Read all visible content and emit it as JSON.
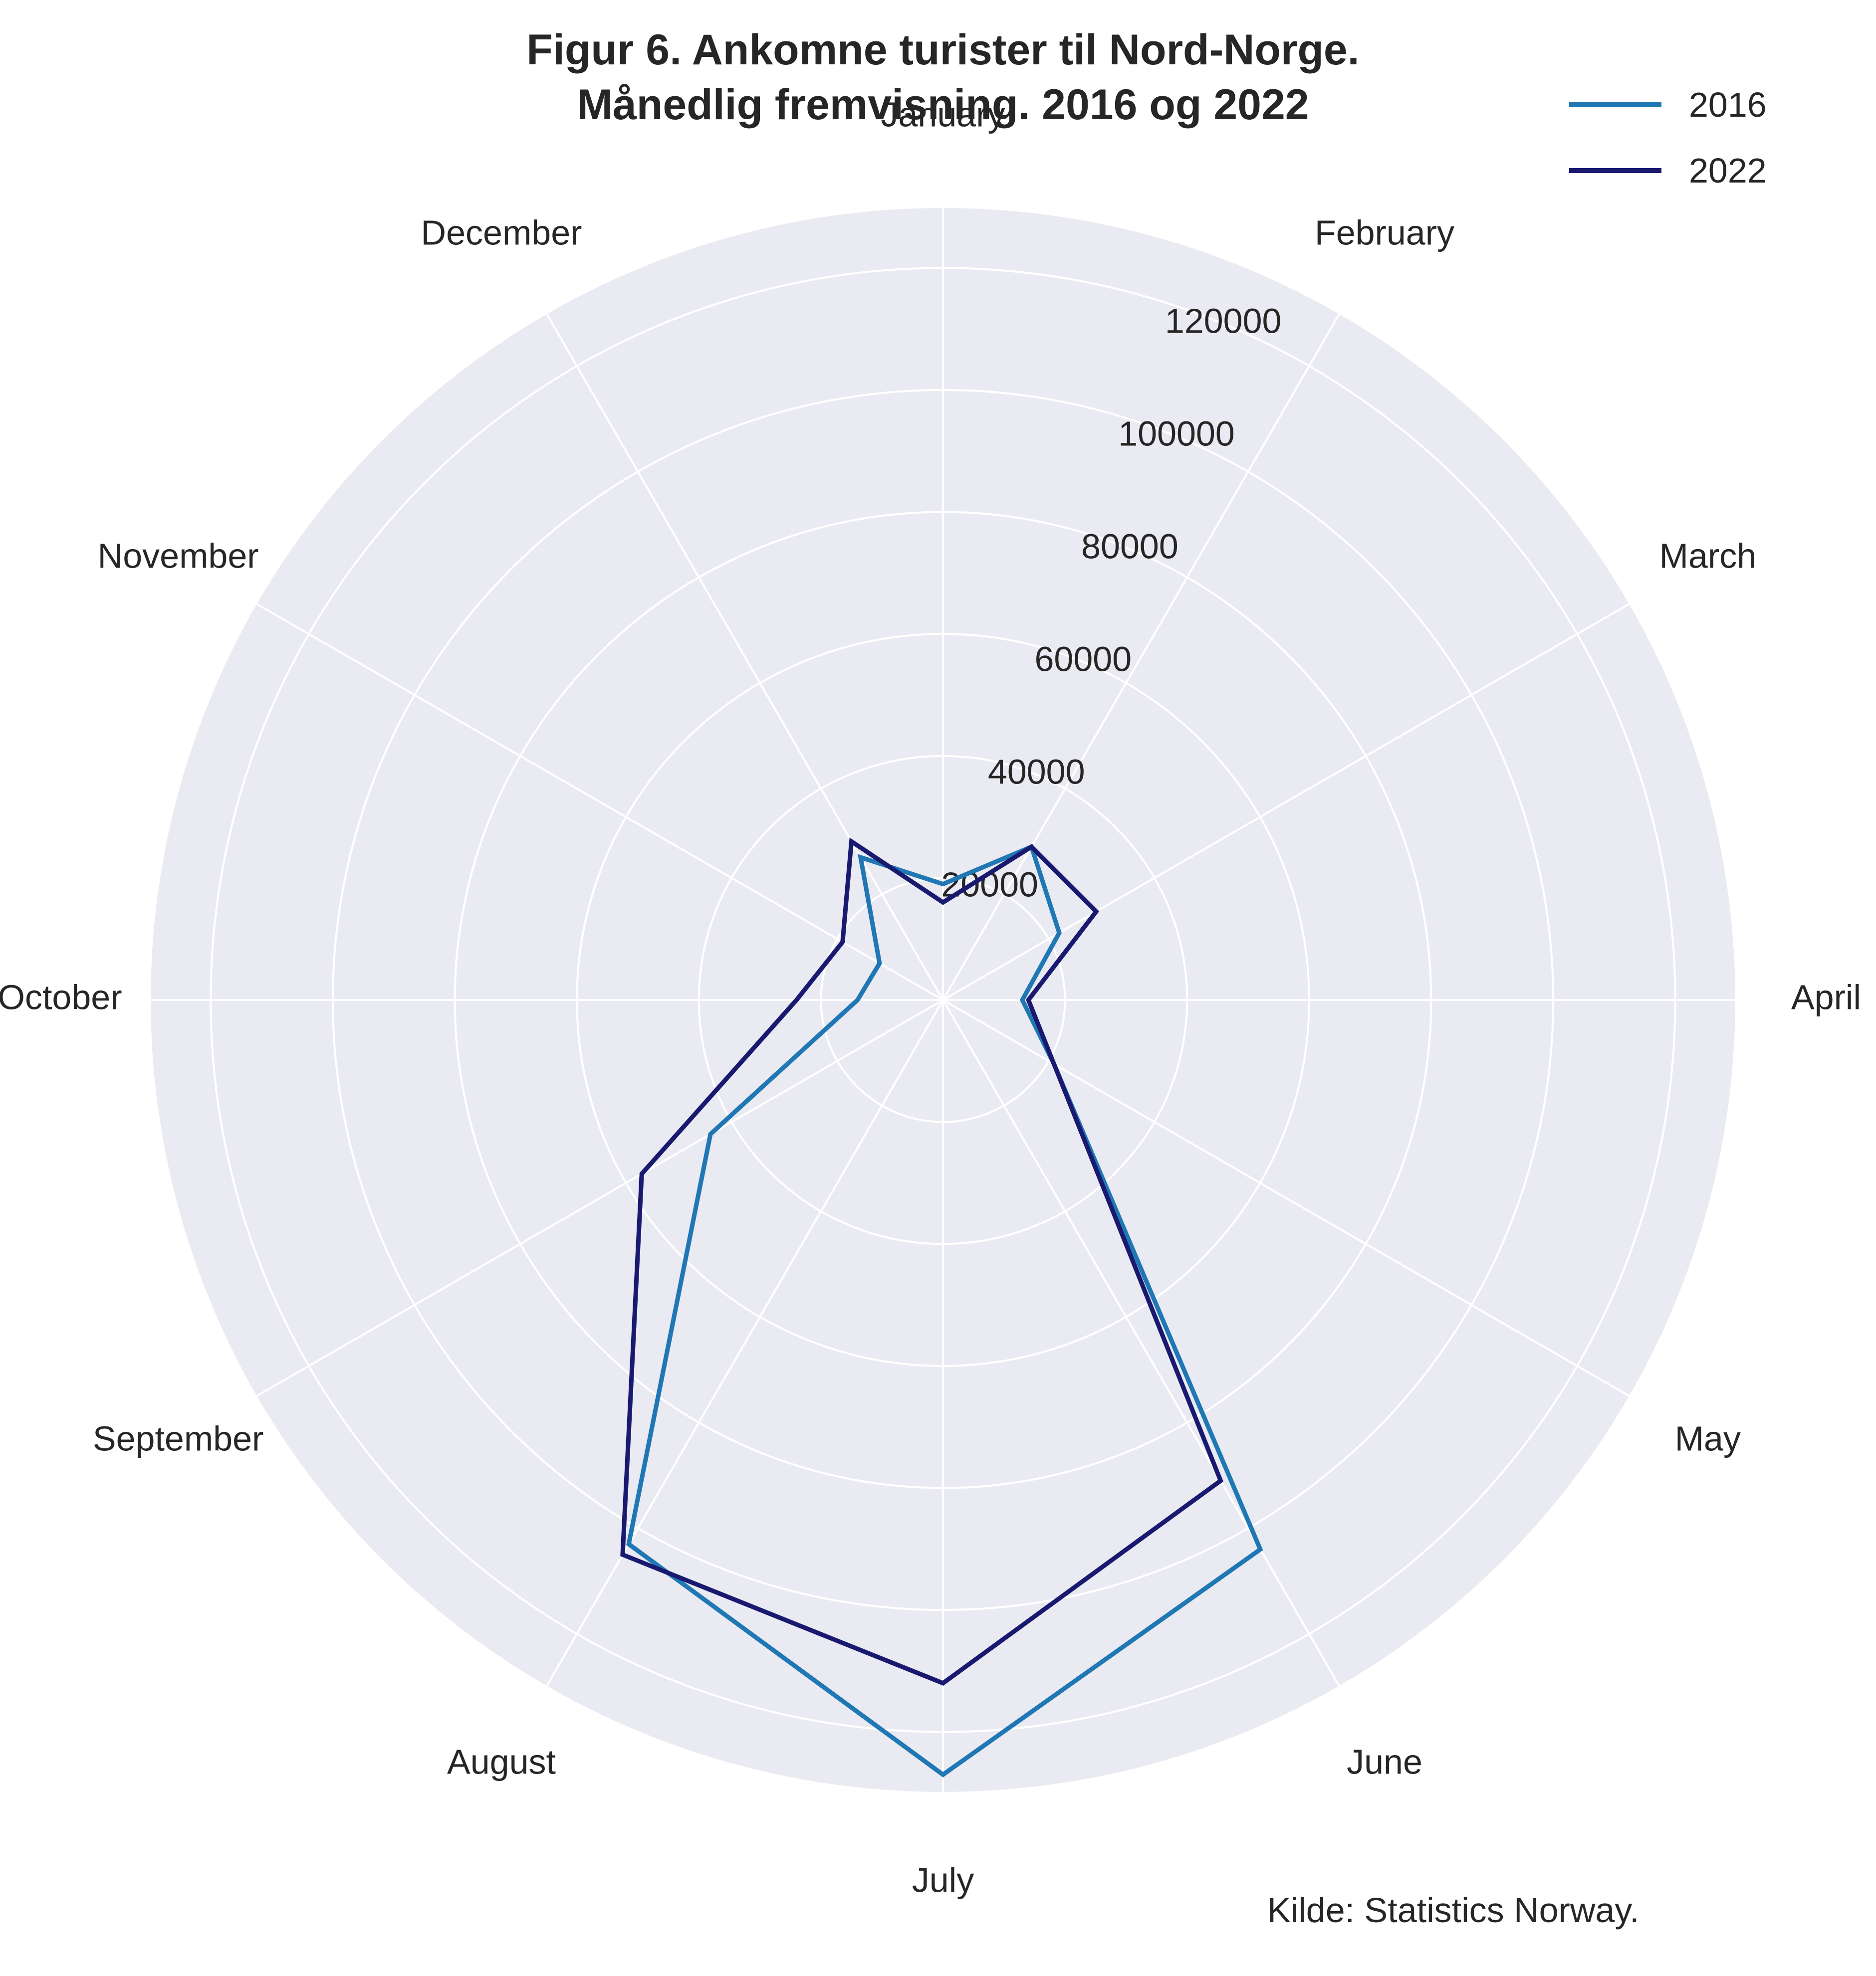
{
  "title_line1": "Figur 6. Ankomne turister til Nord-Norge.",
  "title_line2": "Månedlig fremvisning. 2016 og 2022",
  "source": "Kilde: Statistics Norway.",
  "colors": {
    "background": "#eaeaf2",
    "grid": "#ffffff",
    "text": "#262626"
  },
  "chart_data": {
    "type": "radar",
    "categories": [
      "January",
      "February",
      "March",
      "April",
      "May",
      "June",
      "July",
      "August",
      "September",
      "October",
      "November",
      "December"
    ],
    "radial_ticks": [
      "20000",
      "40000",
      "60000",
      "80000",
      "100000",
      "120000"
    ],
    "rlim": [
      0,
      130000
    ],
    "grid": true,
    "legend_position": "top-right",
    "series": [
      {
        "name": "2016",
        "color": "#1f77b4",
        "values": [
          19000,
          29000,
          22000,
          13000,
          21000,
          104000,
          127000,
          103000,
          44000,
          14000,
          12000,
          27000
        ]
      },
      {
        "name": "2022",
        "color": "#191970",
        "values": [
          16000,
          29000,
          29000,
          14000,
          21000,
          91000,
          112000,
          105000,
          57000,
          24000,
          19000,
          30000
        ]
      }
    ]
  }
}
